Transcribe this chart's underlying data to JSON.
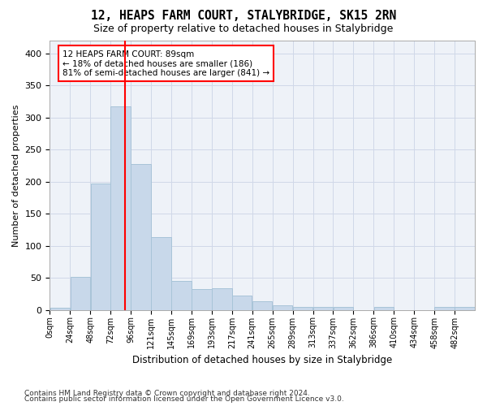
{
  "title": "12, HEAPS FARM COURT, STALYBRIDGE, SK15 2RN",
  "subtitle": "Size of property relative to detached houses in Stalybridge",
  "xlabel": "Distribution of detached houses by size in Stalybridge",
  "ylabel": "Number of detached properties",
  "bar_color": "#c8d8ea",
  "bar_edge_color": "#a8c4d8",
  "grid_color": "#d0d8e8",
  "bg_color": "#eef2f8",
  "vline_x": 89,
  "vline_color": "red",
  "bin_width": 24,
  "bin_starts": [
    0,
    24,
    48,
    72,
    96,
    120,
    144,
    168,
    192,
    216,
    240,
    264,
    288,
    312,
    336,
    360,
    384,
    408,
    432,
    456,
    480
  ],
  "bar_heights": [
    3,
    51,
    197,
    317,
    228,
    114,
    45,
    33,
    34,
    22,
    13,
    7,
    5,
    4,
    4,
    0,
    4,
    0,
    0,
    5,
    5
  ],
  "xlim": [
    0,
    504
  ],
  "ylim": [
    0,
    420
  ],
  "yticks": [
    0,
    50,
    100,
    150,
    200,
    250,
    300,
    350,
    400
  ],
  "xtick_labels": [
    "0sqm",
    "24sqm",
    "48sqm",
    "72sqm",
    "96sqm",
    "121sqm",
    "145sqm",
    "169sqm",
    "193sqm",
    "217sqm",
    "241sqm",
    "265sqm",
    "289sqm",
    "313sqm",
    "337sqm",
    "362sqm",
    "386sqm",
    "410sqm",
    "434sqm",
    "458sqm",
    "482sqm"
  ],
  "annotation_text": "12 HEAPS FARM COURT: 89sqm\n← 18% of detached houses are smaller (186)\n81% of semi-detached houses are larger (841) →",
  "annotation_box_color": "white",
  "annotation_box_edge": "red",
  "footer_line1": "Contains HM Land Registry data © Crown copyright and database right 2024.",
  "footer_line2": "Contains public sector information licensed under the Open Government Licence v3.0."
}
